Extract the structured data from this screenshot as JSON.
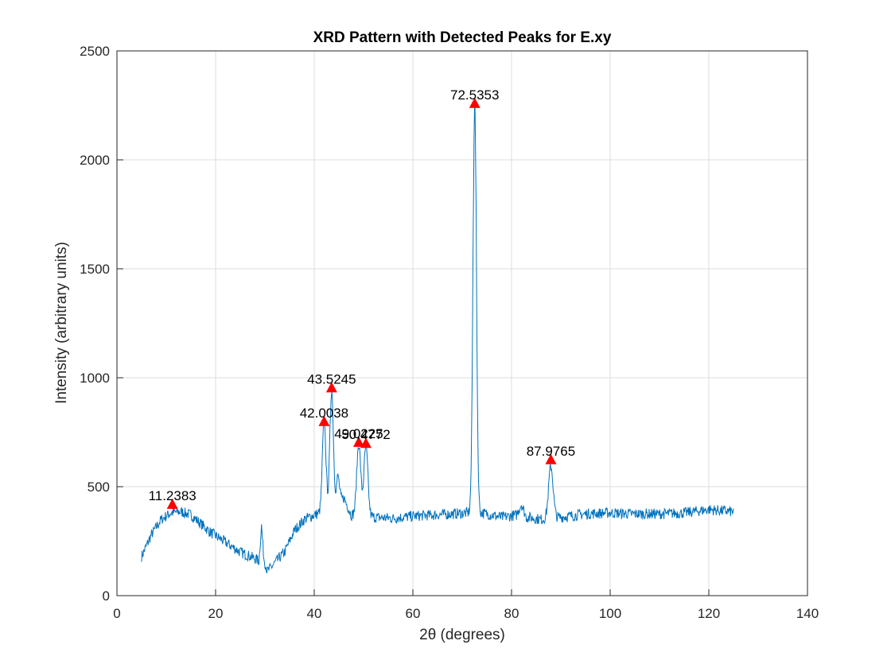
{
  "chart_data": {
    "type": "line",
    "title": "XRD Pattern with Detected Peaks for E.xy",
    "xlabel": "2θ (degrees)",
    "ylabel": "Intensity (arbitrary units)",
    "xlim": [
      0,
      140
    ],
    "ylim": [
      0,
      2500
    ],
    "xticks": [
      "0",
      "20",
      "40",
      "60",
      "80",
      "100",
      "120",
      "140"
    ],
    "yticks": [
      "0",
      "500",
      "1000",
      "1500",
      "2000",
      "2500"
    ],
    "grid": true,
    "colors": {
      "line": "#0072BD",
      "marker": "#ff0000"
    },
    "series": [
      {
        "x_range": [
          5,
          125
        ],
        "baseline": [
          [
            5,
            180
          ],
          [
            7,
            280
          ],
          [
            9,
            350
          ],
          [
            11,
            380
          ],
          [
            13,
            385
          ],
          [
            15,
            370
          ],
          [
            17,
            330
          ],
          [
            19,
            290
          ],
          [
            21,
            260
          ],
          [
            23,
            230
          ],
          [
            25,
            200
          ],
          [
            27,
            180
          ],
          [
            28.8,
            160
          ],
          [
            29.3,
            320
          ],
          [
            29.8,
            170
          ],
          [
            30.5,
            110
          ],
          [
            32,
            150
          ],
          [
            34,
            200
          ],
          [
            36,
            300
          ],
          [
            38,
            350
          ],
          [
            40,
            370
          ],
          [
            41.3,
            380
          ],
          [
            44.5,
            420
          ],
          [
            46,
            450
          ],
          [
            47.5,
            370
          ],
          [
            52,
            360
          ],
          [
            56,
            355
          ],
          [
            60,
            365
          ],
          [
            64,
            370
          ],
          [
            68,
            375
          ],
          [
            71.5,
            380
          ],
          [
            74,
            380
          ],
          [
            78,
            360
          ],
          [
            81,
            370
          ],
          [
            82,
            420
          ],
          [
            83,
            360
          ],
          [
            86,
            350
          ],
          [
            90,
            360
          ],
          [
            95,
            375
          ],
          [
            100,
            380
          ],
          [
            105,
            375
          ],
          [
            110,
            375
          ],
          [
            115,
            380
          ],
          [
            120,
            395
          ],
          [
            125,
            385
          ]
        ],
        "peaks_shape": [
          {
            "center": 42.0038,
            "height": 420,
            "width": 0.35
          },
          {
            "center": 43.5245,
            "height": 540,
            "width": 0.35
          },
          {
            "center": 49.0225,
            "height": 330,
            "width": 0.4
          },
          {
            "center": 50.4772,
            "height": 320,
            "width": 0.4
          },
          {
            "center": 72.5353,
            "height": 1880,
            "width": 0.35
          },
          {
            "center": 87.9765,
            "height": 240,
            "width": 0.45
          },
          {
            "center": 44.8,
            "height": 120,
            "width": 0.3
          }
        ],
        "noise": 25
      }
    ],
    "peaks": [
      {
        "x": 11.2383,
        "y": 420,
        "label": "11.2383"
      },
      {
        "x": 42.0038,
        "y": 800,
        "label": "42.0038"
      },
      {
        "x": 43.5245,
        "y": 955,
        "label": "43.5245"
      },
      {
        "x": 49.0225,
        "y": 705,
        "label": "49.0225"
      },
      {
        "x": 50.4772,
        "y": 700,
        "label": "50.4772"
      },
      {
        "x": 72.5353,
        "y": 2260,
        "label": "72.5353"
      },
      {
        "x": 87.9765,
        "y": 625,
        "label": "87.9765"
      }
    ]
  }
}
